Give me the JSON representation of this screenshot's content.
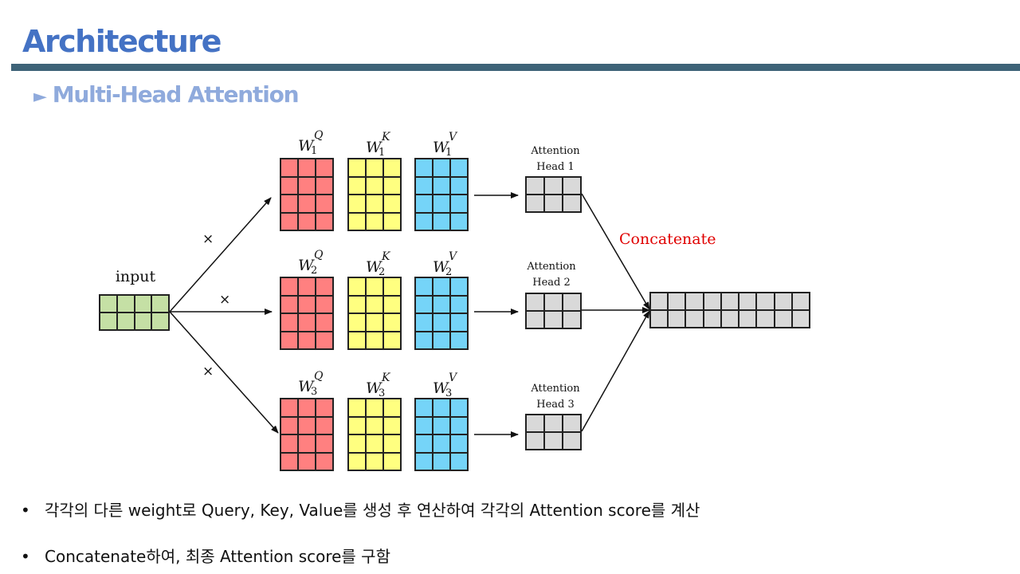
{
  "header": {
    "title": "Architecture",
    "subtitle_marker": "►",
    "subtitle": "Multi-Head Attention"
  },
  "diagram": {
    "input_label": "input",
    "multiply_symbol": "×",
    "weight_letter": "W",
    "heads": [
      {
        "index": "1",
        "q": "Q",
        "k": "K",
        "v": "V",
        "label_line1": "Attention",
        "label_line2": "Head 1"
      },
      {
        "index": "2",
        "q": "Q",
        "k": "K",
        "v": "V",
        "label_line1": "Attention",
        "label_line2": "Head 2"
      },
      {
        "index": "3",
        "q": "Q",
        "k": "K",
        "v": "V",
        "label_line1": "Attention",
        "label_line2": "Head 3"
      }
    ],
    "concat_label": "Concatenate",
    "colors": {
      "input": "#c5e0a5",
      "query": "#ff8080",
      "key": "#ffff80",
      "value": "#75d4f8",
      "attention": "#d9d9d9",
      "concat_text": "#e00000"
    }
  },
  "bullets": [
    {
      "marker": "•",
      "text": "각각의 다른 weight로 Query, Key, Value를 생성 후 연산하여 각각의 Attention score를 계산"
    },
    {
      "marker": "•",
      "text": "Concatenate하여, 최종 Attention score를 구함"
    }
  ]
}
